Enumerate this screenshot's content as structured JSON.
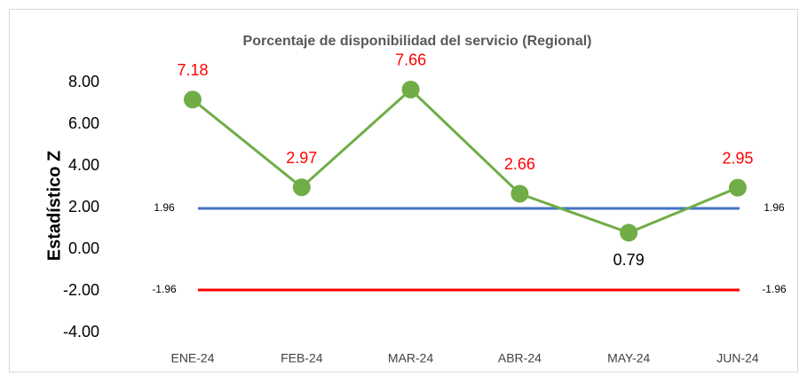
{
  "chart_data": {
    "type": "line",
    "title": "Porcentaje de disponibilidad del servicio (Regional)",
    "ylabel": "Estadístico Z",
    "categories": [
      "ENE-24",
      "FEB-24",
      "MAR-24",
      "ABR-24",
      "MAY-24",
      "JUN-24"
    ],
    "series": [
      {
        "color": "#70ad47",
        "values": [
          7.18,
          2.97,
          7.66,
          2.66,
          0.79,
          2.95
        ]
      }
    ],
    "label_colors": [
      "#ff0000",
      "#ff0000",
      "#ff0000",
      "#ff0000",
      "#000000",
      "#ff0000"
    ],
    "label_positions": [
      "above",
      "above",
      "above",
      "above",
      "below",
      "above"
    ],
    "reference_lines": [
      {
        "value": 1.96,
        "color": "#4472c4"
      },
      {
        "value": -1.96,
        "color": "#ff0000"
      }
    ],
    "ylim": [
      -4,
      8
    ],
    "yticks": [
      {
        "value": -4,
        "label": "-4.00"
      },
      {
        "value": -2,
        "label": "-2.00"
      },
      {
        "value": 0,
        "label": "0.00"
      },
      {
        "value": 2,
        "label": "2.00"
      },
      {
        "value": 4,
        "label": "4.00"
      },
      {
        "value": 6,
        "label": "6.00"
      },
      {
        "value": 8,
        "label": "8.00"
      }
    ],
    "grid": false
  }
}
